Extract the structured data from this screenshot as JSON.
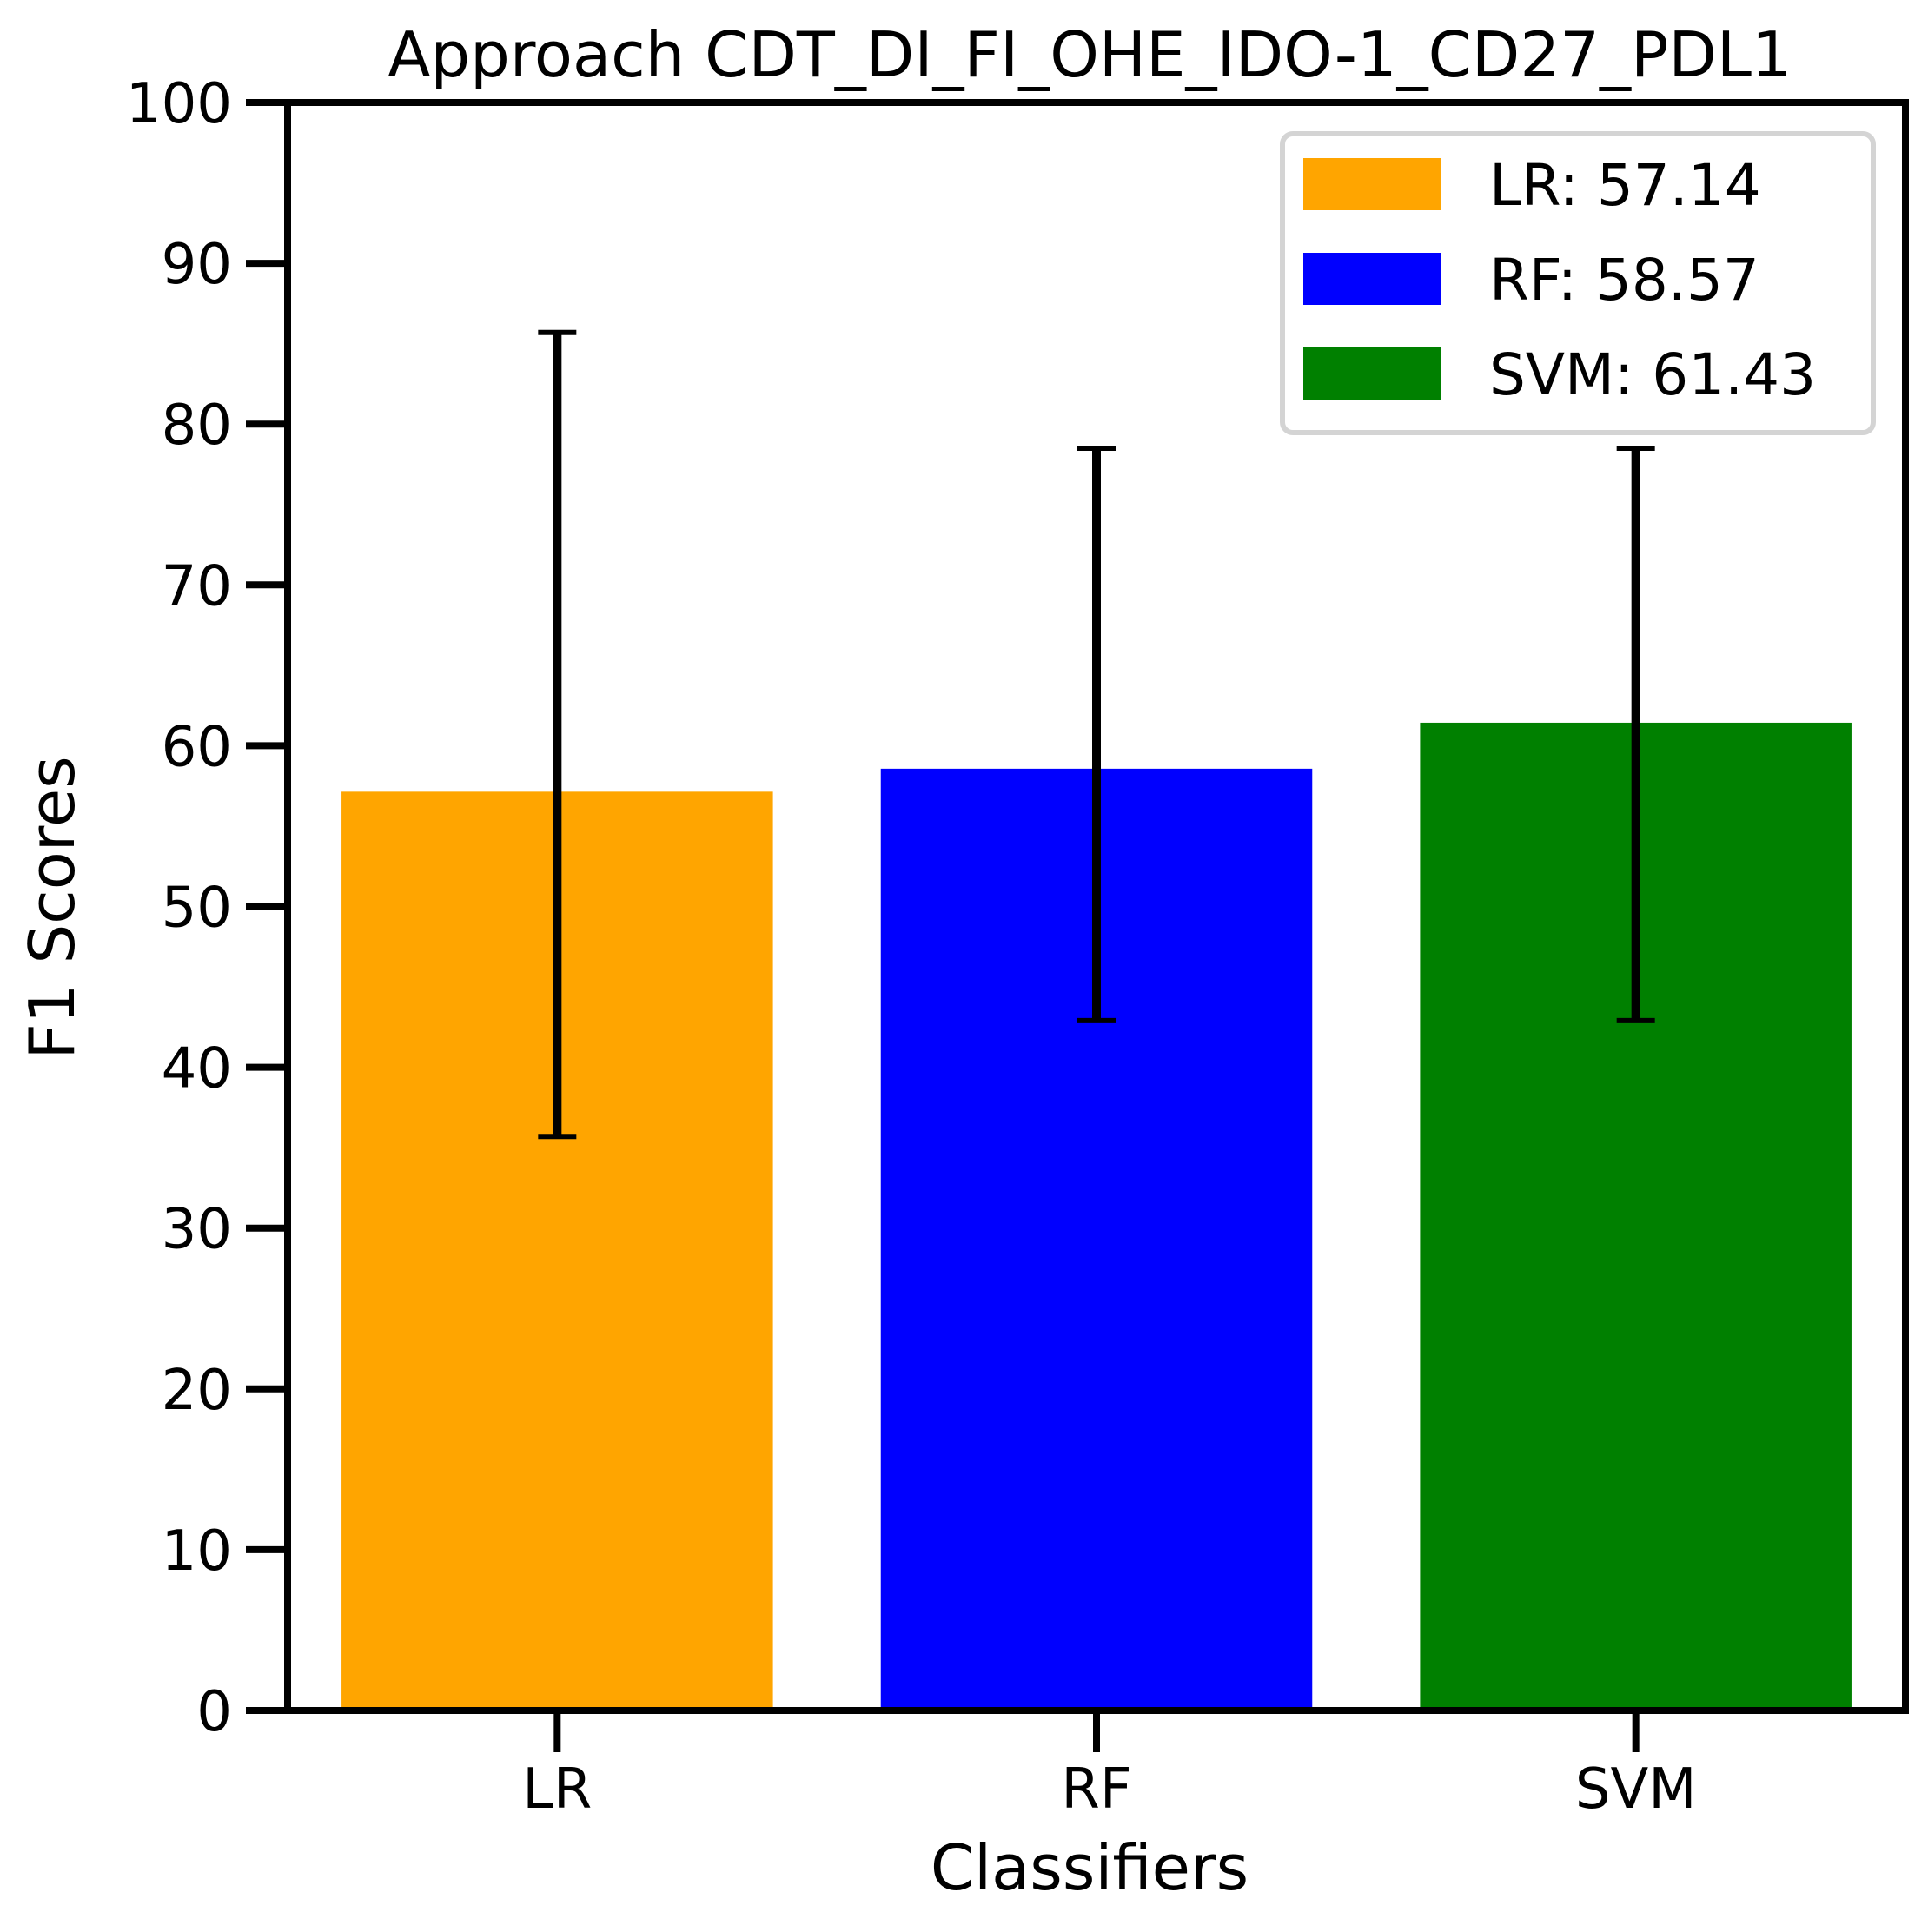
{
  "chart_data": {
    "type": "bar",
    "title": "Approach CDT_DI_FI_OHE_IDO-1_CD27_PDL1",
    "xlabel": "Classifiers",
    "ylabel": "F1 Scores",
    "ylim": [
      0,
      100
    ],
    "yticks": [
      0,
      10,
      20,
      30,
      40,
      50,
      60,
      70,
      80,
      90,
      100
    ],
    "grid": false,
    "legend_position": "top-right",
    "categories": [
      "LR",
      "RF",
      "SVM"
    ],
    "values": [
      57.14,
      58.57,
      61.43
    ],
    "error_low": [
      35.7,
      42.9,
      42.9
    ],
    "error_high": [
      85.7,
      78.5,
      78.5
    ],
    "colors": [
      "#FFA500",
      "#0000FF",
      "#008000"
    ],
    "legend": [
      {
        "label": "LR: 57.14",
        "color": "#FFA500"
      },
      {
        "label": "RF: 58.57",
        "color": "#0000FF"
      },
      {
        "label": "SVM: 61.43",
        "color": "#008000"
      }
    ]
  }
}
